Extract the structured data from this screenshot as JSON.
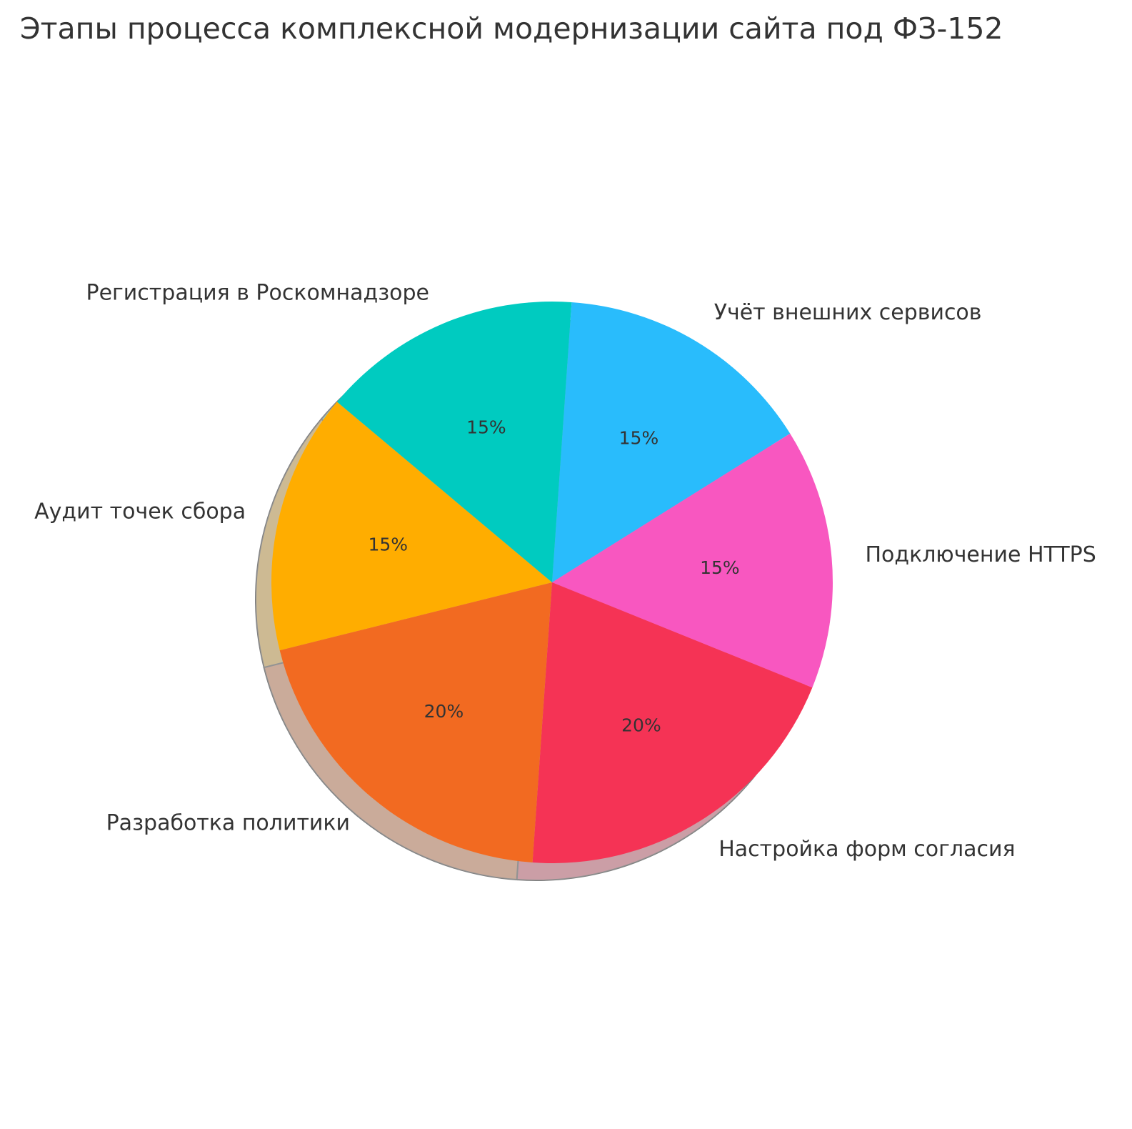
{
  "chart_data": {
    "type": "pie",
    "title": "Этапы процесса комплексной модернизации сайта под ФЗ-152",
    "slices": [
      {
        "label": "Учёт внешних сервисов",
        "value": 15,
        "pct_label": "15%",
        "color": "#29BCFC"
      },
      {
        "label": "Подключение HTTPS",
        "value": 15,
        "pct_label": "15%",
        "color": "#F857C0"
      },
      {
        "label": "Настройка форм согласия",
        "value": 20,
        "pct_label": "20%",
        "color": "#F53355"
      },
      {
        "label": "Разработка политики",
        "value": 20,
        "pct_label": "20%",
        "color": "#F26A21"
      },
      {
        "label": "Аудит точек сбора",
        "value": 15,
        "pct_label": "15%",
        "color": "#FFAD00"
      },
      {
        "label": "Регистрация в Роскомнадзоре",
        "value": 15,
        "pct_label": "15%",
        "color": "#00CBC0"
      }
    ],
    "start_angle_deg": 86,
    "direction": "clockwise",
    "shadow": true,
    "text_color": "#333333"
  }
}
